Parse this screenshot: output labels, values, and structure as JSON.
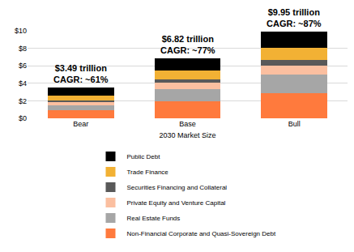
{
  "chart_data": {
    "type": "bar",
    "stacked": true,
    "categories": [
      "Bear",
      "Base",
      "Bull"
    ],
    "x_label": "2030 Market Size",
    "series": [
      {
        "name": "Non-Financial Corporate and Quasi-Sovereign Debt",
        "color": "#ff7a3d",
        "values": [
          0.95,
          1.9,
          2.85
        ]
      },
      {
        "name": "Real Estate Funds",
        "color": "#a6a6a6",
        "values": [
          0.55,
          1.45,
          2.15
        ]
      },
      {
        "name": "Private Equity and Venture Capital",
        "color": "#fbbfa0",
        "values": [
          0.35,
          0.7,
          1.05
        ]
      },
      {
        "name": "Securities Financing and Collateral",
        "color": "#595959",
        "values": [
          0.2,
          0.4,
          0.65
        ]
      },
      {
        "name": "Trade Finance",
        "color": "#f2b134",
        "values": [
          0.5,
          1.0,
          1.4
        ]
      },
      {
        "name": "Public Debt",
        "color": "#000000",
        "values": [
          0.94,
          1.37,
          1.85
        ]
      }
    ],
    "annotations": [
      {
        "category": "Bear",
        "text": [
          "$3.49 trillion",
          "CAGR: ~61%"
        ]
      },
      {
        "category": "Base",
        "text": [
          "$6.82 trillion",
          "CAGR: ~77%"
        ]
      },
      {
        "category": "Bull",
        "text": [
          "$9.95 trillion",
          "CAGR: ~87%"
        ]
      }
    ],
    "ylim": [
      0,
      10
    ],
    "yticks": [
      {
        "value": 0,
        "label": "$0"
      },
      {
        "value": 2,
        "label": "$2"
      },
      {
        "value": 4,
        "label": "$4"
      },
      {
        "value": 6,
        "label": "$6"
      },
      {
        "value": 8,
        "label": "$8"
      },
      {
        "value": 10,
        "label": "$10"
      }
    ],
    "grid": true,
    "legend": "bottom"
  }
}
